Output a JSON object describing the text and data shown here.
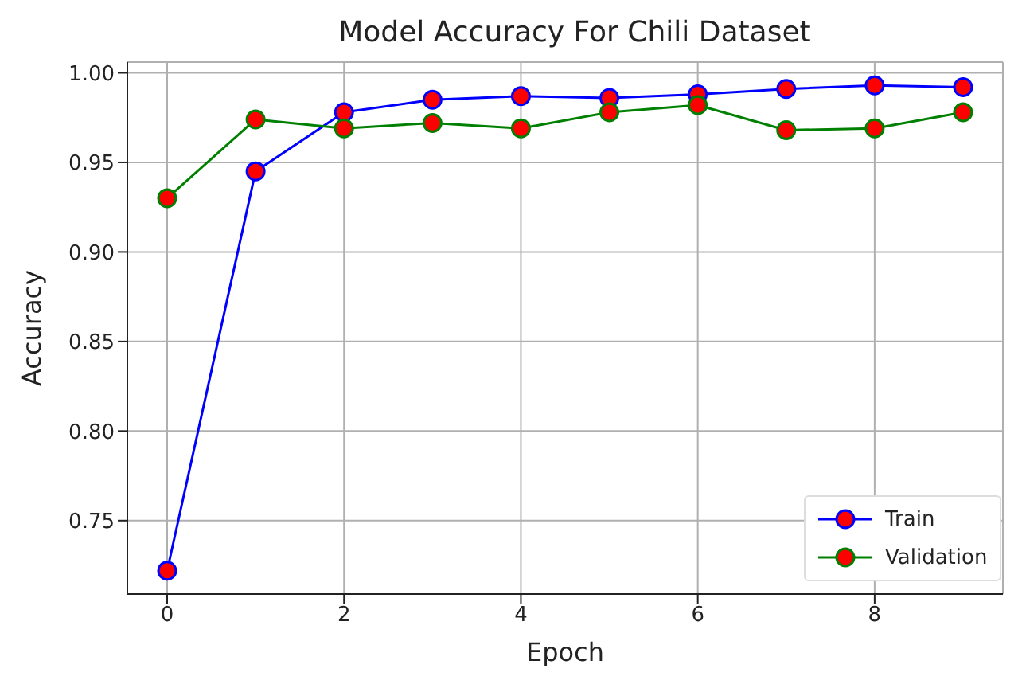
{
  "chart_data": {
    "type": "line",
    "title": "Model Accuracy For Chili Dataset",
    "xlabel": "Epoch",
    "ylabel": "Accuracy",
    "x": [
      0,
      1,
      2,
      3,
      4,
      5,
      6,
      7,
      8,
      9
    ],
    "series": [
      {
        "name": "Train",
        "color": "#0000ff",
        "values": [
          0.722,
          0.945,
          0.978,
          0.985,
          0.987,
          0.986,
          0.988,
          0.991,
          0.993,
          0.992
        ]
      },
      {
        "name": "Validation",
        "color": "#008000",
        "values": [
          0.93,
          0.974,
          0.969,
          0.972,
          0.969,
          0.978,
          0.982,
          0.968,
          0.969,
          0.978
        ]
      }
    ],
    "xlim": [
      -0.45,
      9.45
    ],
    "xticks": [
      0,
      2,
      4,
      6,
      8
    ],
    "ylim": [
      0.709,
      1.006
    ],
    "yticks": [
      0.75,
      {
        "value": 0.8,
        "label": "0.80"
      },
      0.85,
      {
        "value": 0.9,
        "label": "0.90"
      },
      0.95,
      {
        "value": 1.0,
        "label": "1.00"
      }
    ],
    "grid": true,
    "legend": "bottom right",
    "marker": "circle",
    "line_style": "solid"
  }
}
